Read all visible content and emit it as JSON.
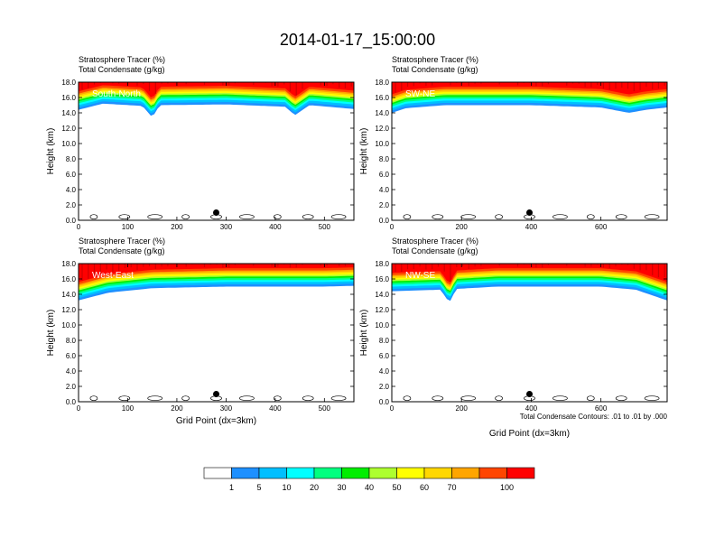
{
  "title": "2014-01-17_15:00:00",
  "footnote": "Total Condensate Contours: .01 to .01 by .000",
  "colorbar": {
    "colors": [
      "#ffffff",
      "#1e90ff",
      "#00bfff",
      "#00ffff",
      "#00ff7f",
      "#00ee00",
      "#adff2f",
      "#ffff00",
      "#ffd700",
      "#ffa500",
      "#ff4500",
      "#ff0000"
    ],
    "labels": [
      "1",
      "5",
      "10",
      "20",
      "30",
      "40",
      "50",
      "60",
      "70",
      "100"
    ]
  },
  "chart_data": [
    {
      "type": "heatmap",
      "label": "South-North",
      "header": [
        "Stratosphere Tracer   (%)",
        "Total Condensate   (g/kg)"
      ],
      "ylabel": "Height (km)",
      "xlabel": "",
      "xlim": [
        0,
        560
      ],
      "ylim": [
        0,
        18
      ],
      "xticks": [
        0,
        100,
        200,
        300,
        400,
        500
      ],
      "yticks": [
        "0.0",
        "2.0",
        "4.0",
        "6.0",
        "8.0",
        "10.0",
        "12.0",
        "14.0",
        "16.0",
        "18.0"
      ],
      "marker_x": 280,
      "tracer_base_km": [
        [
          0,
          15.0
        ],
        [
          50,
          15.8
        ],
        [
          130,
          15.5
        ],
        [
          150,
          14.0
        ],
        [
          165,
          15.6
        ],
        [
          300,
          15.7
        ],
        [
          420,
          15.4
        ],
        [
          440,
          14.3
        ],
        [
          470,
          15.6
        ],
        [
          560,
          15.1
        ]
      ]
    },
    {
      "type": "heatmap",
      "label": "SW-NE",
      "header": [
        "Stratosphere Tracer   (%)",
        "Total Condensate   (g/kg)"
      ],
      "ylabel": "Height (km)",
      "xlabel": "",
      "xlim": [
        0,
        790
      ],
      "ylim": [
        0,
        18
      ],
      "xticks": [
        0,
        200,
        400,
        600
      ],
      "yticks": [
        "0.0",
        "2.0",
        "4.0",
        "6.0",
        "8.0",
        "10.0",
        "12.0",
        "14.0",
        "16.0",
        "18.0"
      ],
      "marker_x": 395,
      "tracer_base_km": [
        [
          0,
          14.6
        ],
        [
          40,
          15.2
        ],
        [
          150,
          15.6
        ],
        [
          400,
          15.6
        ],
        [
          600,
          15.3
        ],
        [
          680,
          14.6
        ],
        [
          730,
          15.0
        ],
        [
          790,
          15.3
        ]
      ]
    },
    {
      "type": "heatmap",
      "label": "West-East",
      "header": [
        "Stratosphere Tracer   (%)",
        "Total Condensate   (g/kg)"
      ],
      "ylabel": "Height (km)",
      "xlabel": "Grid Point (dx=3km)",
      "xlim": [
        0,
        560
      ],
      "ylim": [
        0,
        18
      ],
      "xticks": [
        0,
        100,
        200,
        300,
        400,
        500
      ],
      "yticks": [
        "0.0",
        "2.0",
        "4.0",
        "6.0",
        "8.0",
        "10.0",
        "12.0",
        "14.0",
        "16.0",
        "18.0"
      ],
      "marker_x": 280,
      "tracer_base_km": [
        [
          0,
          13.8
        ],
        [
          60,
          14.8
        ],
        [
          150,
          15.4
        ],
        [
          300,
          15.6
        ],
        [
          500,
          15.6
        ],
        [
          560,
          15.7
        ]
      ]
    },
    {
      "type": "heatmap",
      "label": "NW-SE",
      "header": [
        "Stratosphere Tracer   (%)",
        "Total Condensate   (g/kg)"
      ],
      "ylabel": "Height (km)",
      "xlabel": "Grid Point (dx=3km)",
      "xlim": [
        0,
        790
      ],
      "ylim": [
        0,
        18
      ],
      "xticks": [
        0,
        200,
        400,
        600
      ],
      "yticks": [
        "0.0",
        "2.0",
        "4.0",
        "6.0",
        "8.0",
        "10.0",
        "12.0",
        "14.0",
        "16.0",
        "18.0"
      ],
      "marker_x": 395,
      "tracer_base_km": [
        [
          0,
          15.0
        ],
        [
          140,
          15.2
        ],
        [
          165,
          13.5
        ],
        [
          185,
          15.3
        ],
        [
          300,
          15.6
        ],
        [
          600,
          15.6
        ],
        [
          700,
          15.2
        ],
        [
          790,
          13.8
        ]
      ]
    }
  ]
}
